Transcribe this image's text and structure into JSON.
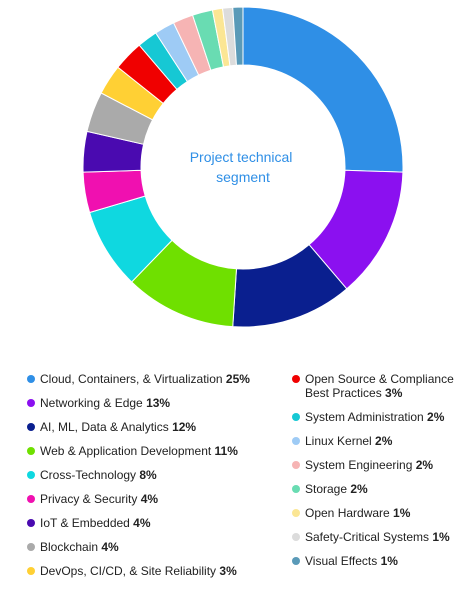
{
  "chart_data": {
    "type": "pie",
    "title": "Project technical segment",
    "categories": [
      "Cloud, Containers, & Virtualization",
      "Networking & Edge",
      "AI, ML, Data & Analytics",
      "Web & Application Development",
      "Cross-Technology",
      "Privacy & Security",
      "IoT & Embedded",
      "Blockchain",
      "DevOps, CI/CD, & Site Reliability",
      "Open Source & Compliance Best Practices",
      "System Administration",
      "Linux Kernel",
      "System Engineering",
      "Storage",
      "Open Hardware",
      "Safety-Critical Systems",
      "Visual Effects"
    ],
    "values": [
      25,
      13,
      12,
      11,
      8,
      4,
      4,
      4,
      3,
      3,
      2,
      2,
      2,
      2,
      1,
      1,
      1
    ],
    "value_labels": [
      "25%",
      "13%",
      "12%",
      "11%",
      "8%",
      "4%",
      "4%",
      "4%",
      "3%",
      "3%",
      "2%",
      "2%",
      "2%",
      "2%",
      "1%",
      "1%",
      "1%"
    ],
    "colors": [
      "#2f8fe6",
      "#8b10f0",
      "#0a1f8f",
      "#6fe000",
      "#0fd8e0",
      "#f010b0",
      "#4a0ab0",
      "#aaaaaa",
      "#ffd034",
      "#f00000",
      "#16c8d4",
      "#9ecbf5",
      "#f6b4b4",
      "#69dcb2",
      "#fbe694",
      "#dcdcdc",
      "#5a9ab8"
    ],
    "legend_position": "bottom"
  }
}
